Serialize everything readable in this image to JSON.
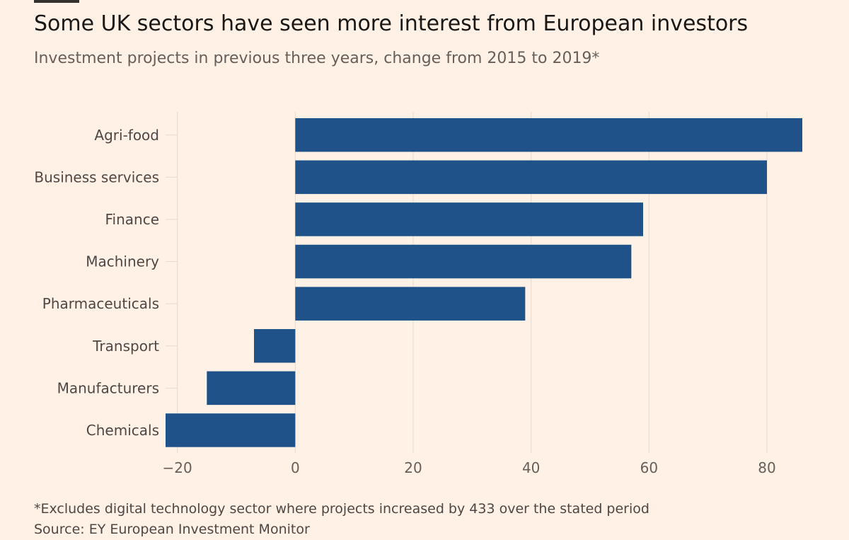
{
  "header": {
    "title": "Some UK sectors have seen more interest from European investors",
    "subtitle": "Investment projects in previous three years, change from 2015 to 2019*"
  },
  "footer": {
    "note": "*Excludes digital technology sector where projects increased by 433 over the stated period",
    "source": "Source: EY European Investment Monitor"
  },
  "colors": {
    "bar": "#1f5288",
    "grid": "#e6d9ce",
    "axis_text": "#66605c",
    "label_text": "#4d4845",
    "background": "#fff1e5"
  },
  "chart_data": {
    "type": "bar",
    "orientation": "horizontal",
    "title": "Some UK sectors have seen more interest from European investors",
    "subtitle": "Investment projects in previous three years, change from 2015 to 2019*",
    "categories": [
      "Agri-food",
      "Business services",
      "Finance",
      "Machinery",
      "Pharmaceuticals",
      "Transport",
      "Manufacturers",
      "Chemicals"
    ],
    "values": [
      86,
      80,
      59,
      57,
      39,
      -7,
      -15,
      -22
    ],
    "xlabel": "",
    "ylabel": "",
    "xlim": [
      -22,
      86
    ],
    "xticks": [
      -20,
      0,
      20,
      40,
      60,
      80
    ],
    "grid": "vertical",
    "legend": "none"
  }
}
